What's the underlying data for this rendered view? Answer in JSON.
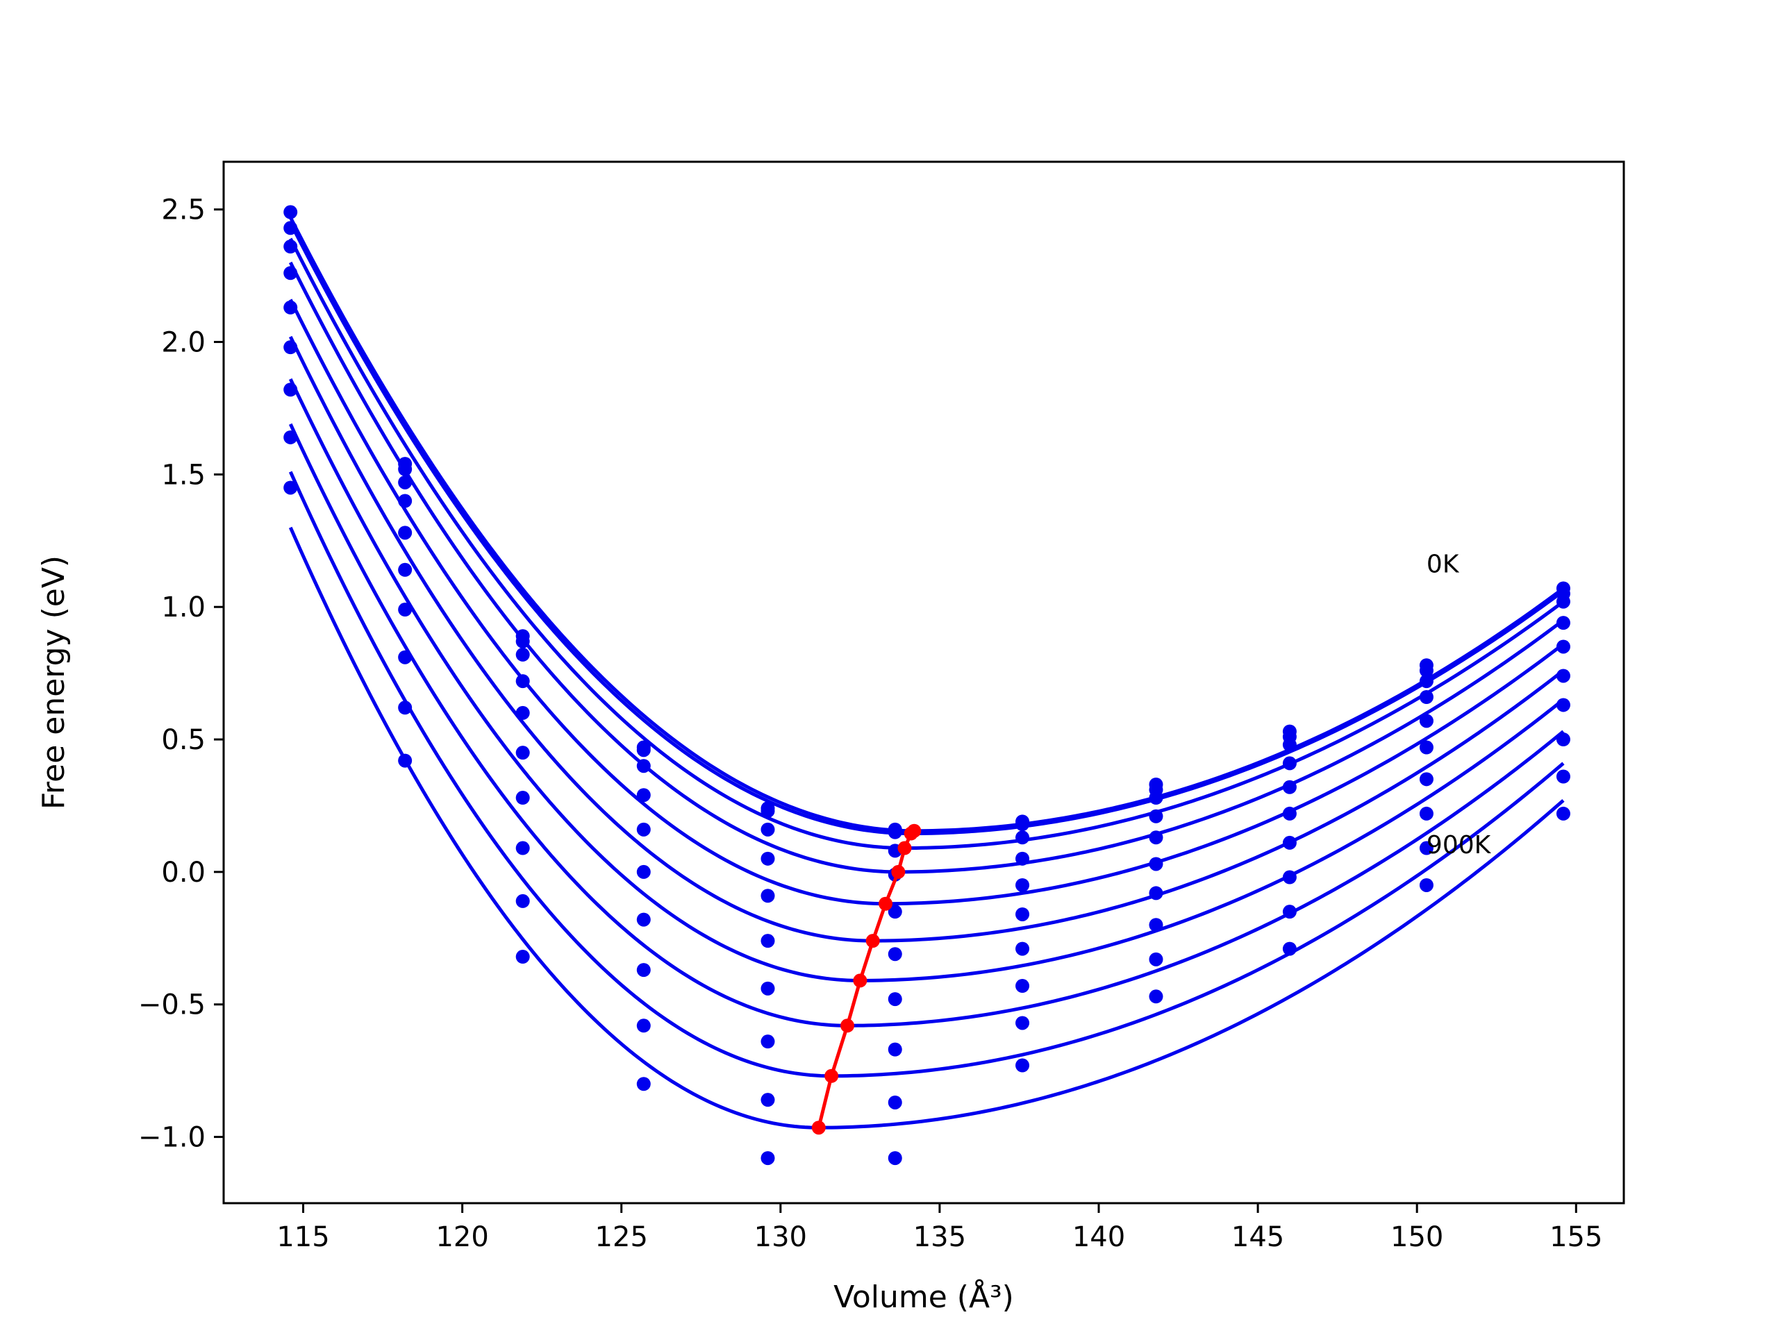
{
  "chart_data": {
    "type": "line",
    "xlabel": "Volume (Å³)",
    "ylabel": "Free energy (eV)",
    "xlim": [
      112.5,
      156.5
    ],
    "ylim": [
      -1.25,
      2.68
    ],
    "xticks": [
      115,
      120,
      125,
      130,
      135,
      140,
      145,
      150,
      155
    ],
    "xtick_labels": [
      "115",
      "120",
      "125",
      "130",
      "135",
      "140",
      "145",
      "150",
      "155"
    ],
    "yticks": [
      -1.0,
      -0.5,
      0.0,
      0.5,
      1.0,
      1.5,
      2.0,
      2.5
    ],
    "ytick_labels": [
      "−1.0",
      "−0.5",
      "0.0",
      "0.5",
      "1.0",
      "1.5",
      "2.0",
      "2.5"
    ],
    "grid": false,
    "annotations": [
      {
        "text": "0K",
        "x": 150.3,
        "y": 1.13
      },
      {
        "text": "900K",
        "x": 150.3,
        "y": 0.07
      }
    ],
    "colors": {
      "curves": "#0000ee",
      "minimum_path": "#ff0000",
      "axes": "#000000"
    },
    "volumes": [
      114.6,
      118.2,
      121.9,
      125.7,
      129.6,
      133.6,
      137.6,
      141.8,
      146.0,
      150.3,
      154.6
    ],
    "series": [
      {
        "fit": {
          "min_x": 134.2,
          "min_y": 0.155,
          "left_y": 2.47,
          "right_y": 1.07
        },
        "points": [
          2.49,
          1.54,
          0.89,
          0.47,
          0.24,
          0.16,
          0.19,
          0.33,
          0.53,
          0.78,
          1.07
        ]
      },
      {
        "fit": {
          "min_x": 134.1,
          "min_y": 0.145,
          "left_y": 2.45,
          "right_y": 1.06
        },
        "points": [
          2.43,
          1.52,
          0.87,
          0.46,
          0.23,
          0.15,
          0.18,
          0.31,
          0.51,
          0.76,
          1.05
        ]
      },
      {
        "fit": {
          "min_x": 133.9,
          "min_y": 0.09,
          "left_y": 2.39,
          "right_y": 1.02
        },
        "points": [
          2.36,
          1.47,
          0.82,
          0.4,
          0.16,
          0.08,
          0.13,
          0.28,
          0.48,
          0.72,
          1.02
        ]
      },
      {
        "fit": {
          "min_x": 133.7,
          "min_y": 0.0,
          "left_y": 2.3,
          "right_y": 0.95
        },
        "points": [
          2.26,
          1.4,
          0.72,
          0.29,
          0.05,
          -0.01,
          0.05,
          0.21,
          0.41,
          0.66,
          0.94
        ]
      },
      {
        "fit": {
          "min_x": 133.3,
          "min_y": -0.12,
          "left_y": 2.16,
          "right_y": 0.86
        },
        "points": [
          2.13,
          1.28,
          0.6,
          0.16,
          -0.09,
          -0.15,
          -0.05,
          0.13,
          0.32,
          0.57,
          0.85
        ]
      },
      {
        "fit": {
          "min_x": 132.9,
          "min_y": -0.26,
          "left_y": 2.02,
          "right_y": 0.76
        },
        "points": [
          1.98,
          1.14,
          0.45,
          0.0,
          -0.26,
          -0.31,
          -0.16,
          0.03,
          0.22,
          0.47,
          0.74
        ]
      },
      {
        "fit": {
          "min_x": 132.5,
          "min_y": -0.41,
          "left_y": 1.86,
          "right_y": 0.65
        },
        "points": [
          1.82,
          0.99,
          0.28,
          -0.18,
          -0.44,
          -0.48,
          -0.29,
          -0.08,
          0.11,
          0.35,
          0.63
        ]
      },
      {
        "fit": {
          "min_x": 132.1,
          "min_y": -0.58,
          "left_y": 1.69,
          "right_y": 0.53
        },
        "points": [
          1.64,
          0.81,
          0.09,
          -0.37,
          -0.64,
          -0.67,
          -0.43,
          -0.2,
          -0.02,
          0.22,
          0.5
        ]
      },
      {
        "fit": {
          "min_x": 131.6,
          "min_y": -0.77,
          "left_y": 1.51,
          "right_y": 0.41
        },
        "points": [
          1.45,
          0.62,
          -0.11,
          -0.58,
          -0.86,
          -0.87,
          -0.57,
          -0.33,
          -0.15,
          0.09,
          0.36
        ]
      },
      {
        "fit": {
          "min_x": 131.2,
          "min_y": -0.965,
          "left_y": 1.3,
          "right_y": 0.27
        },
        "points": [
          null,
          0.42,
          -0.32,
          -0.8,
          -1.08,
          -1.08,
          -0.73,
          -0.47,
          -0.29,
          -0.05,
          0.22
        ]
      }
    ],
    "minimum_path": {
      "x": [
        134.2,
        134.1,
        133.9,
        133.7,
        133.3,
        132.9,
        132.5,
        132.1,
        131.6,
        131.2
      ],
      "y": [
        0.155,
        0.145,
        0.09,
        0.0,
        -0.12,
        -0.26,
        -0.41,
        -0.58,
        -0.77,
        -0.965
      ]
    }
  }
}
